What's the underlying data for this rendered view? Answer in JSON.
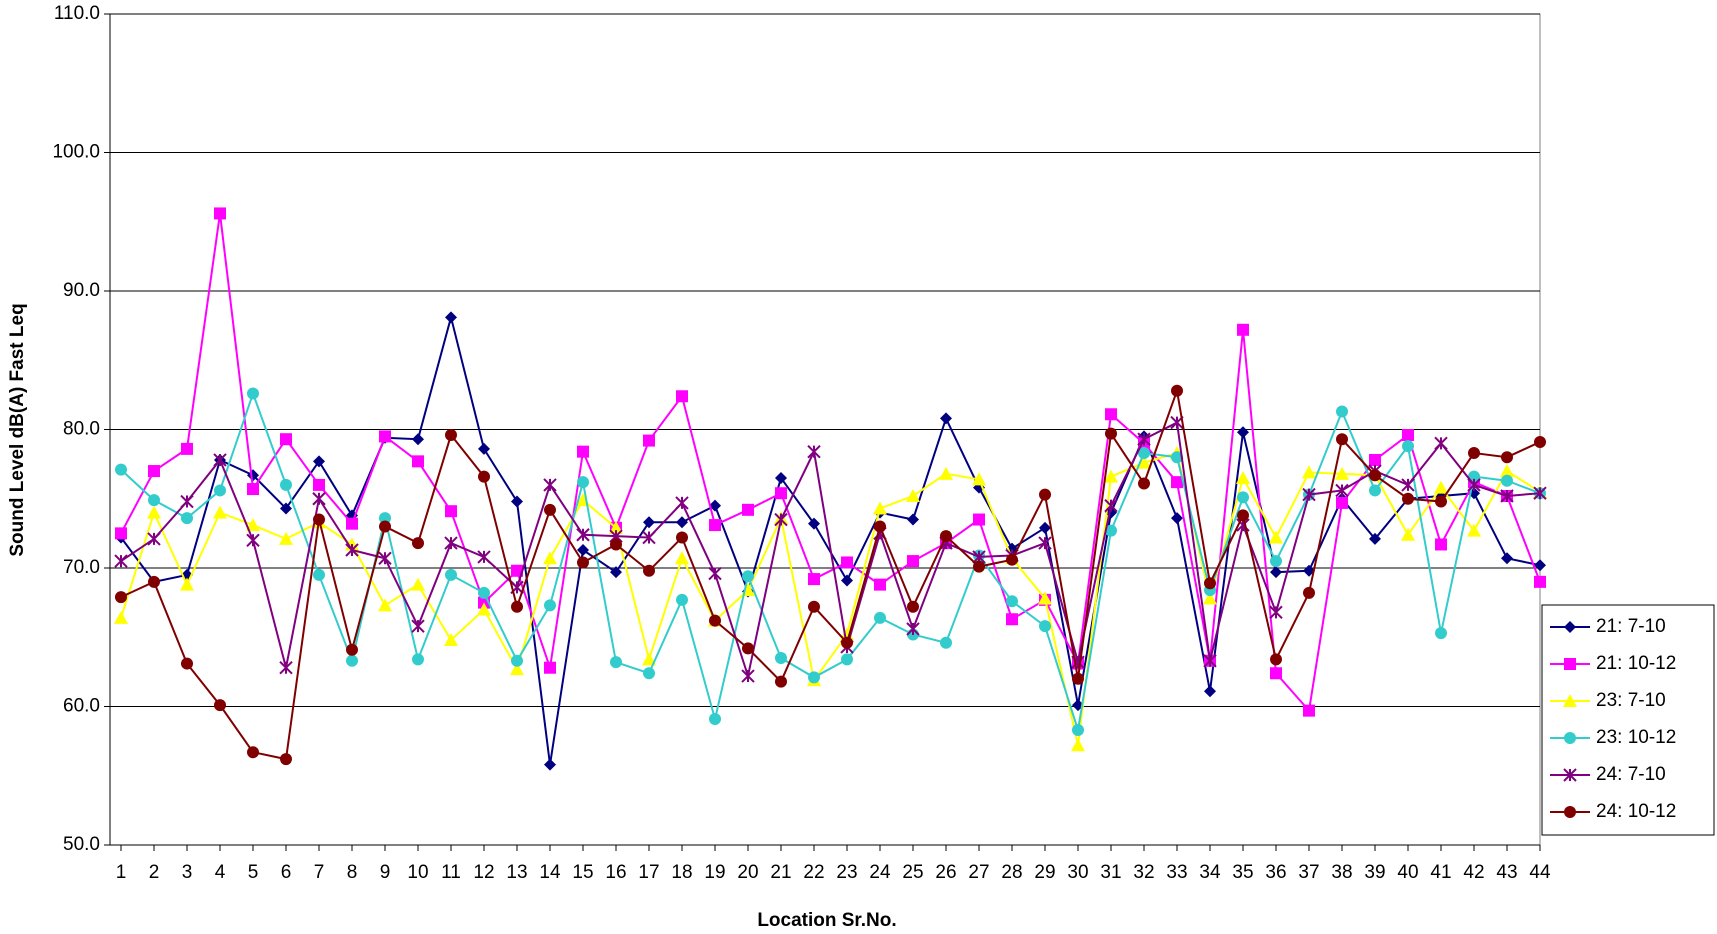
{
  "chart_data": {
    "type": "line",
    "x_label": "Location Sr.No.",
    "y_label": "Sound Level dB(A) Fast Leq",
    "categories": [
      "1",
      "2",
      "3",
      "4",
      "5",
      "6",
      "7",
      "8",
      "9",
      "10",
      "11",
      "12",
      "13",
      "14",
      "15",
      "16",
      "17",
      "18",
      "19",
      "20",
      "21",
      "22",
      "23",
      "24",
      "25",
      "26",
      "27",
      "28",
      "29",
      "30",
      "31",
      "32",
      "33",
      "34",
      "35",
      "36",
      "37",
      "38",
      "39",
      "40",
      "41",
      "42",
      "43",
      "44"
    ],
    "ylim": [
      50,
      110
    ],
    "yticks": [
      {
        "value": 50,
        "label": "50.0"
      },
      {
        "value": 60,
        "label": "60.0"
      },
      {
        "value": 70,
        "label": "70.0"
      },
      {
        "value": 80,
        "label": "80.0"
      },
      {
        "value": 90,
        "label": "90.0"
      },
      {
        "value": 100,
        "label": "100.0"
      },
      {
        "value": 110,
        "label": "110.0"
      }
    ],
    "grid": true,
    "legend": "right",
    "series": [
      {
        "name": "21: 7-10",
        "color": "#000080",
        "marker": "diamond",
        "values": [
          72.2,
          69.0,
          69.5,
          77.8,
          76.7,
          74.3,
          77.7,
          73.8,
          79.4,
          79.3,
          88.1,
          78.6,
          74.8,
          55.8,
          71.3,
          69.7,
          73.3,
          73.3,
          74.5,
          68.3,
          76.5,
          73.2,
          69.1,
          74.0,
          73.5,
          80.8,
          75.8,
          71.4,
          72.9,
          60.1,
          74.0,
          79.5,
          73.6,
          61.1,
          79.8,
          69.7,
          69.8,
          75.0,
          72.1,
          75.0,
          75.2,
          75.4,
          70.7,
          70.2
        ]
      },
      {
        "name": "21: 10-12",
        "color": "#ff00ff",
        "marker": "square",
        "values": [
          72.5,
          77.0,
          78.6,
          95.6,
          75.7,
          79.3,
          76.0,
          73.2,
          79.5,
          77.7,
          74.1,
          67.5,
          69.8,
          62.8,
          78.4,
          72.9,
          79.2,
          82.4,
          73.1,
          74.2,
          75.4,
          69.2,
          70.4,
          68.8,
          70.5,
          71.8,
          73.5,
          66.3,
          67.7,
          63.1,
          81.1,
          79.0,
          76.2,
          63.3,
          87.2,
          62.4,
          59.7,
          74.7,
          77.8,
          79.6,
          71.7,
          76.2,
          75.2,
          69.0
        ]
      },
      {
        "name": "23: 7-10",
        "color": "#ffff00",
        "marker": "triangle",
        "values": [
          66.4,
          74.0,
          68.8,
          74.0,
          73.1,
          72.1,
          73.3,
          71.7,
          67.3,
          68.8,
          64.8,
          67.0,
          62.7,
          70.7,
          74.9,
          72.9,
          63.4,
          70.7,
          66.2,
          68.4,
          73.6,
          61.9,
          65.2,
          74.3,
          75.2,
          76.8,
          76.4,
          70.7,
          67.8,
          57.2,
          76.6,
          77.6,
          78.3,
          67.8,
          76.5,
          72.2,
          76.9,
          76.8,
          76.7,
          72.4,
          75.8,
          72.7,
          77.0,
          75.5
        ]
      },
      {
        "name": "23: 10-12",
        "color": "#33cccc",
        "marker": "circle",
        "values": [
          77.1,
          74.9,
          73.6,
          75.6,
          82.6,
          76.0,
          69.5,
          63.3,
          73.6,
          63.4,
          69.5,
          68.2,
          63.3,
          67.3,
          76.2,
          63.2,
          62.4,
          67.7,
          59.1,
          69.4,
          63.5,
          62.1,
          63.4,
          66.4,
          65.2,
          64.6,
          70.9,
          67.6,
          65.8,
          58.3,
          72.7,
          78.3,
          78.0,
          68.4,
          75.1,
          70.5,
          75.3,
          81.3,
          75.6,
          78.8,
          65.3,
          76.6,
          76.3,
          75.4
        ]
      },
      {
        "name": "24: 7-10",
        "color": "#800080",
        "marker": "star",
        "values": [
          70.5,
          72.1,
          74.8,
          77.8,
          72.0,
          62.8,
          75.0,
          71.3,
          70.7,
          65.8,
          71.8,
          70.8,
          68.6,
          76.0,
          72.4,
          72.3,
          72.2,
          74.7,
          69.6,
          62.2,
          73.5,
          78.4,
          64.3,
          72.5,
          65.6,
          71.8,
          70.8,
          70.9,
          71.8,
          63.2,
          74.5,
          79.3,
          80.5,
          63.3,
          73.1,
          66.8,
          75.3,
          75.6,
          77.0,
          76.0,
          79.0,
          76.0,
          75.2,
          75.4
        ]
      },
      {
        "name": "24: 10-12",
        "color": "#800000",
        "marker": "circle",
        "values": [
          67.9,
          69.0,
          63.1,
          60.1,
          56.7,
          56.2,
          73.5,
          64.1,
          73.0,
          71.8,
          79.6,
          76.6,
          67.2,
          74.2,
          70.4,
          71.7,
          69.8,
          72.2,
          66.2,
          64.2,
          61.8,
          67.2,
          64.6,
          73.0,
          67.2,
          72.3,
          70.1,
          70.6,
          75.3,
          62.0,
          79.7,
          76.1,
          82.8,
          68.9,
          73.8,
          63.4,
          68.2,
          79.3,
          76.7,
          75.0,
          74.8,
          78.3,
          78.0,
          79.1
        ]
      }
    ]
  }
}
